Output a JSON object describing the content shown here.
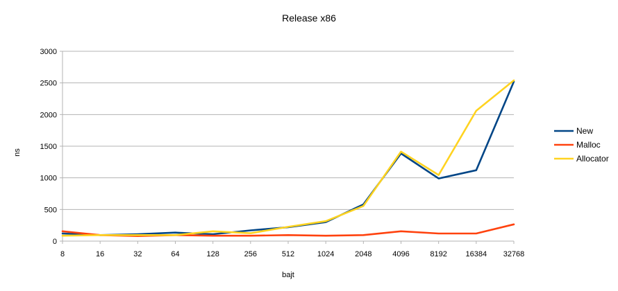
{
  "chart_data": {
    "type": "line",
    "title": "Release x86",
    "xlabel": "bajt",
    "ylabel": "ns",
    "categories": [
      "8",
      "16",
      "32",
      "64",
      "128",
      "256",
      "512",
      "1024",
      "2048",
      "4096",
      "8192",
      "16384",
      "32768"
    ],
    "ylim": [
      0,
      3000
    ],
    "yticks": [
      0,
      500,
      1000,
      1500,
      2000,
      2500,
      3000
    ],
    "grid": true,
    "legend_position": "right",
    "series": [
      {
        "name": "New",
        "color": "#004586",
        "values": [
          120,
          95,
          110,
          135,
          110,
          170,
          220,
          300,
          580,
          1385,
          990,
          1120,
          2520
        ]
      },
      {
        "name": "Malloc",
        "color": "#ff420e",
        "values": [
          155,
          95,
          80,
          95,
          85,
          85,
          95,
          85,
          95,
          155,
          120,
          120,
          265
        ]
      },
      {
        "name": "Allocator",
        "color": "#ffd320",
        "values": [
          85,
          95,
          95,
          95,
          155,
          125,
          225,
          315,
          555,
          1415,
          1045,
          2060,
          2540
        ]
      }
    ]
  }
}
